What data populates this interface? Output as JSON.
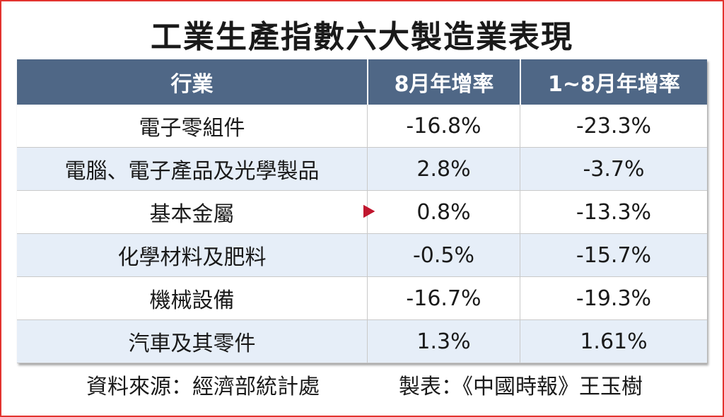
{
  "title": "工業生產指數六大製造業表現",
  "headers": {
    "industry": "行業",
    "aug_yoy": "8月年增率",
    "jan_aug_yoy": "1~8月年增率"
  },
  "rows": [
    {
      "industry": "電子零組件",
      "aug": "-16.8%",
      "ytd": "-23.3%"
    },
    {
      "industry": "電腦、電子產品及光學製品",
      "aug": "2.8%",
      "ytd": "-3.7%"
    },
    {
      "industry": "基本金屬",
      "aug": "0.8%",
      "ytd": "-13.3%"
    },
    {
      "industry": "化學材料及肥料",
      "aug": "-0.5%",
      "ytd": "-15.7%"
    },
    {
      "industry": "機械設備",
      "aug": "-16.7%",
      "ytd": "-19.3%"
    },
    {
      "industry": "汽車及其零件",
      "aug": "1.3%",
      "ytd": "1.61%"
    }
  ],
  "footer": {
    "source": "資料來源：經濟部統計處",
    "maker": "製表：《中國時報》王玉樹"
  },
  "colors": {
    "header_bg": "#4f6786",
    "stripe_bg": "#e6eef8",
    "arrow": "#c0162e",
    "frame": "#e3342f"
  }
}
